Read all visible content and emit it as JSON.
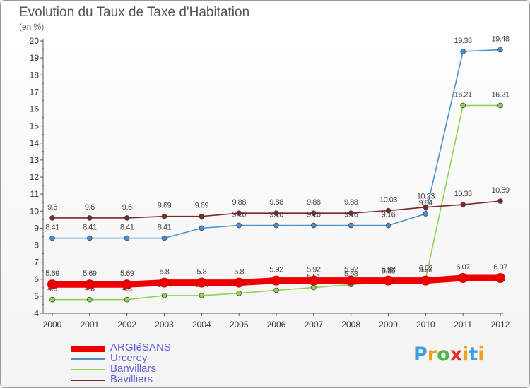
{
  "title": "Evolution du Taux de Taxe d'Habitation",
  "subtitle": "(en %)",
  "brand": {
    "letters": [
      "P",
      "r",
      "o",
      "x",
      "i",
      "t",
      "i"
    ],
    "colors": [
      "#3aa0e0",
      "#f0a020",
      "#4cb848",
      "#e8302a",
      "#f0a020",
      "#3aa0e0",
      "#f0a020"
    ]
  },
  "chart_data": {
    "type": "line",
    "title": "Evolution du Taux de Taxe d'Habitation",
    "ylabel": "(en %)",
    "x": [
      "2000",
      "2001",
      "2002",
      "2003",
      "2004",
      "2005",
      "2006",
      "2007",
      "2008",
      "2009",
      "2010",
      "2011",
      "2012"
    ],
    "ylim": [
      4,
      20
    ],
    "yticks": [
      "4",
      "5",
      "6",
      "7",
      "8",
      "9",
      "10",
      "11",
      "12",
      "13",
      "14",
      "15",
      "16",
      "17",
      "18",
      "19",
      "20"
    ],
    "series": [
      {
        "name": "Urcerey",
        "color": "#4a90d0",
        "values": [
          8.41,
          8.41,
          8.41,
          8.41,
          9,
          9.16,
          9.16,
          9.16,
          9.16,
          9.16,
          9.84,
          19.38,
          19.48
        ],
        "labels": [
          "8.41",
          "8.41",
          "8.41",
          "8.41",
          "9",
          "9.16",
          "9.16",
          "9.16",
          "9.16",
          "9.16",
          "9.84",
          "19.38",
          "19.48"
        ]
      },
      {
        "name": "Banvillars",
        "color": "#8fd450",
        "values": [
          4.8,
          4.8,
          4.8,
          5.04,
          5.04,
          5.17,
          5.35,
          5.51,
          5.68,
          5.85,
          6.02,
          16.21,
          16.21
        ],
        "labels": [
          "4.8",
          "4.8",
          "4.8",
          "5.04",
          "5.04",
          "5.17",
          "5.35",
          "5.51",
          "5.68",
          "5.85",
          "6.02",
          "16.21",
          "16.21"
        ]
      },
      {
        "name": "Bavilliers",
        "color": "#7a2828",
        "values": [
          9.6,
          9.6,
          9.6,
          9.69,
          9.69,
          9.88,
          9.88,
          9.88,
          9.88,
          10.03,
          10.23,
          10.38,
          10.59
        ],
        "labels": [
          "9.6",
          "9.6",
          "9.6",
          "9.69",
          "9.69",
          "9.88",
          "9.88",
          "9.88",
          "9.88",
          "10.03",
          "10.23",
          "10.38",
          "10.59"
        ]
      },
      {
        "name": "ARGIéSANS",
        "color": "#ee0000",
        "thick": true,
        "values": [
          5.69,
          5.69,
          5.69,
          5.8,
          5.8,
          5.8,
          5.92,
          5.92,
          5.92,
          5.92,
          5.92,
          6.07,
          6.07
        ],
        "labels": [
          "5.69",
          "5.69",
          "5.69",
          "5.8",
          "5.8",
          "5.8",
          "5.92",
          "5.92",
          "5.92",
          "5.92",
          "5.92",
          "6.07",
          "6.07"
        ]
      }
    ],
    "legend_order": [
      "ARGIéSANS",
      "Urcerey",
      "Banvillars",
      "Bavilliers"
    ],
    "grid": false,
    "legend": "bottom-left"
  }
}
